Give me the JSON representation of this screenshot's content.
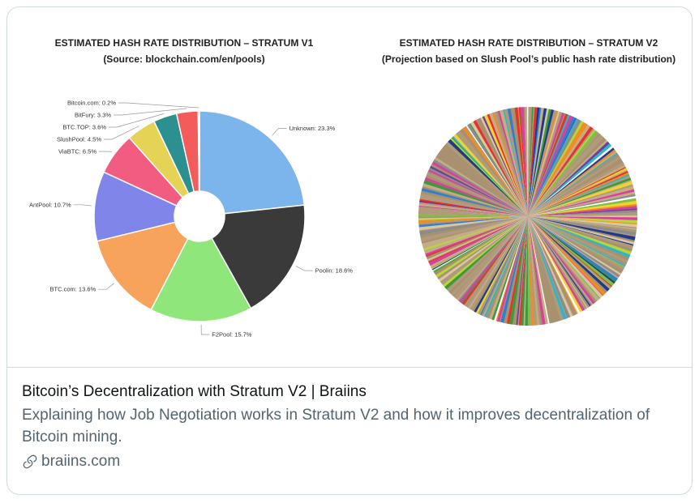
{
  "card": {
    "title": "Bitcoin’s Decentralization with Stratum V2 | Braiins",
    "description": "Explaining how Job Negotiation works in Stratum V2 and how it improves decentralization of Bitcoin mining.",
    "domain": "braiins.com",
    "domain_icon": "link-icon"
  },
  "chart_data": [
    {
      "type": "pie",
      "variant": "donut",
      "title": "ESTIMATED HASH RATE DISTRIBUTION – STRATUM V1",
      "subtitle": "(Source: blockchain.com/en/pools)",
      "slices": [
        {
          "label": "Unknown: 23.3%",
          "value": 23.3,
          "color": "#7cb4ec"
        },
        {
          "label": "Poolin: 18.6%",
          "value": 18.6,
          "color": "#3a3a3a"
        },
        {
          "label": "F2Pool: 15.7%",
          "value": 15.7,
          "color": "#8fe67a"
        },
        {
          "label": "BTC.com: 13.6%",
          "value": 13.6,
          "color": "#f7a35c"
        },
        {
          "label": "AntPool: 10.7%",
          "value": 10.7,
          "color": "#8085e9"
        },
        {
          "label": "ViaBTC: 6.5%",
          "value": 6.5,
          "color": "#f15c80"
        },
        {
          "label": "SlushPool: 4.5%",
          "value": 4.5,
          "color": "#e4d354"
        },
        {
          "label": "BTC.TOP: 3.6%",
          "value": 3.6,
          "color": "#2b908f"
        },
        {
          "label": "BitFury: 3.3%",
          "value": 3.3,
          "color": "#f45b5b"
        },
        {
          "label": "Bitcoin.com: 0.2%",
          "value": 0.2,
          "color": "#91e8e1"
        }
      ]
    },
    {
      "type": "pie",
      "title": "ESTIMATED HASH RATE DISTRIBUTION – STRATUM V2",
      "subtitle": "(Projection based on Slush Pool’s public hash rate distribution)",
      "slice_count": 320,
      "dominant_color": "#b09a7a",
      "palette": [
        "#b09a7a",
        "#a8916f",
        "#c4ad86",
        "#e8312c",
        "#2f7fd1",
        "#f28c1e",
        "#7dc142",
        "#f2d22e",
        "#2db5c9",
        "#6b3fa0",
        "#1f3a8c",
        "#d6419a",
        "#3c9a3c",
        "#8c8c8c",
        "#b7d63a",
        "#ffffff",
        "#d8c7a4"
      ]
    }
  ]
}
